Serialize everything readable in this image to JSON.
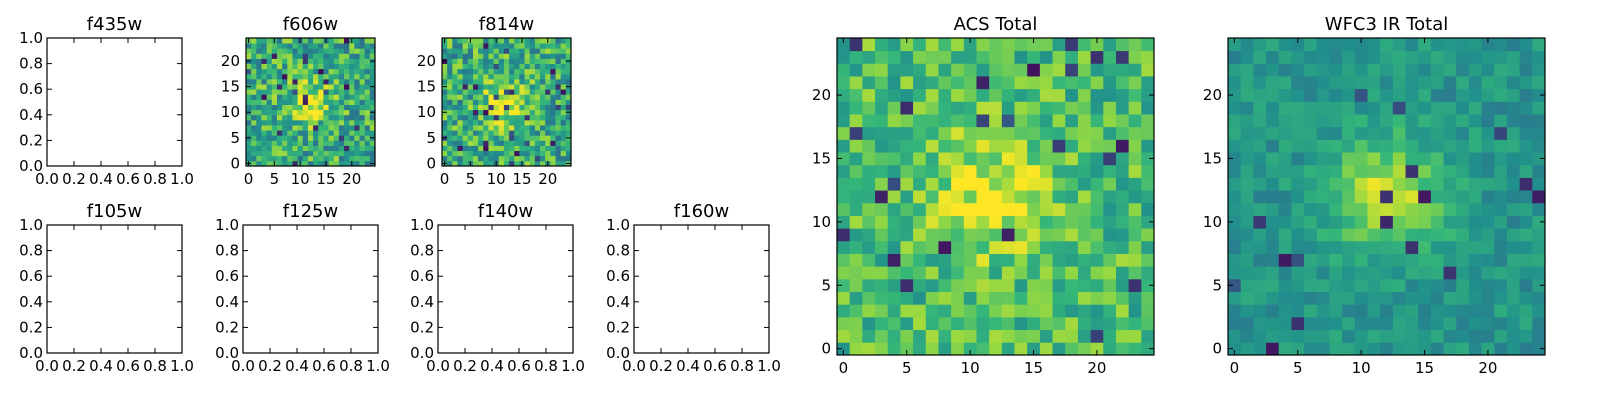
{
  "figure": {
    "panels": [
      {
        "key": "f435w",
        "title": "f435w",
        "type": "empty"
      },
      {
        "key": "f606w",
        "title": "f606w",
        "type": "heatmap"
      },
      {
        "key": "f814w",
        "title": "f814w",
        "type": "heatmap"
      },
      {
        "key": "f105w",
        "title": "f105w",
        "type": "empty"
      },
      {
        "key": "f125w",
        "title": "f125w",
        "type": "empty"
      },
      {
        "key": "f140w",
        "title": "f140w",
        "type": "empty"
      },
      {
        "key": "f160w",
        "title": "f160w",
        "type": "empty"
      },
      {
        "key": "acs_total",
        "title": "ACS Total",
        "type": "heatmap"
      },
      {
        "key": "wfc3_total",
        "title": "WFC3 IR Total",
        "type": "heatmap"
      }
    ],
    "colormap": [
      "#440154",
      "#31688e",
      "#21918c",
      "#35b779",
      "#90d743",
      "#fde725"
    ]
  },
  "chart_data": [
    {
      "type": "scatter",
      "title": "f435w",
      "xlim": [
        0,
        1
      ],
      "ylim": [
        0,
        1
      ],
      "x_ticks": [
        "0.0",
        "0.2",
        "0.4",
        "0.6",
        "0.8",
        "1.0"
      ],
      "y_ticks": [
        "0.0",
        "0.2",
        "0.4",
        "0.6",
        "0.8",
        "1.0"
      ],
      "values": []
    },
    {
      "type": "heatmap",
      "title": "f606w",
      "grid_size": 25,
      "x_ticks": [
        "0",
        "5",
        "10",
        "15",
        "20"
      ],
      "y_ticks": [
        "0",
        "5",
        "10",
        "15",
        "20"
      ],
      "seed": 606,
      "blob": [
        12,
        12,
        0.4,
        3
      ],
      "noise": 0.3,
      "base": 0.55
    },
    {
      "type": "heatmap",
      "title": "f814w",
      "grid_size": 25,
      "x_ticks": [
        "0",
        "5",
        "10",
        "15",
        "20"
      ],
      "y_ticks": [
        "0",
        "5",
        "10",
        "15",
        "20"
      ],
      "seed": 814,
      "blob": [
        12,
        12,
        0.45,
        3
      ],
      "noise": 0.3,
      "base": 0.55
    },
    {
      "type": "scatter",
      "title": "f105w",
      "xlim": [
        0,
        1
      ],
      "ylim": [
        0,
        1
      ],
      "x_ticks": [
        "0.0",
        "0.2",
        "0.4",
        "0.6",
        "0.8",
        "1.0"
      ],
      "y_ticks": [
        "0.0",
        "0.2",
        "0.4",
        "0.6",
        "0.8",
        "1.0"
      ],
      "values": []
    },
    {
      "type": "scatter",
      "title": "f125w",
      "xlim": [
        0,
        1
      ],
      "ylim": [
        0,
        1
      ],
      "x_ticks": [
        "0.0",
        "0.2",
        "0.4",
        "0.6",
        "0.8",
        "1.0"
      ],
      "y_ticks": [
        "0.0",
        "0.2",
        "0.4",
        "0.6",
        "0.8",
        "1.0"
      ],
      "values": []
    },
    {
      "type": "scatter",
      "title": "f140w",
      "xlim": [
        0,
        1
      ],
      "ylim": [
        0,
        1
      ],
      "x_ticks": [
        "0.0",
        "0.2",
        "0.4",
        "0.6",
        "0.8",
        "1.0"
      ],
      "y_ticks": [
        "0.0",
        "0.2",
        "0.4",
        "0.6",
        "0.8",
        "1.0"
      ],
      "values": []
    },
    {
      "type": "scatter",
      "title": "f160w",
      "xlim": [
        0,
        1
      ],
      "ylim": [
        0,
        1
      ],
      "x_ticks": [
        "0.0",
        "0.2",
        "0.4",
        "0.6",
        "0.8",
        "1.0"
      ],
      "y_ticks": [
        "0.0",
        "0.2",
        "0.4",
        "0.6",
        "0.8",
        "1.0"
      ],
      "values": []
    },
    {
      "type": "heatmap",
      "title": "ACS Total",
      "grid_size": 25,
      "x_ticks": [
        "0",
        "5",
        "10",
        "15",
        "20"
      ],
      "y_ticks": [
        "0",
        "5",
        "10",
        "15",
        "20"
      ],
      "seed": 2001,
      "blob": [
        12,
        12,
        0.35,
        3.5
      ],
      "noise": 0.22,
      "base": 0.62
    },
    {
      "type": "heatmap",
      "title": "WFC3 IR Total",
      "grid_size": 25,
      "x_ticks": [
        "0",
        "5",
        "10",
        "15",
        "20"
      ],
      "y_ticks": [
        "0",
        "5",
        "10",
        "15",
        "20"
      ],
      "seed": 3001,
      "blob": [
        12,
        12,
        0.5,
        3
      ],
      "noise": 0.12,
      "base": 0.42
    }
  ]
}
